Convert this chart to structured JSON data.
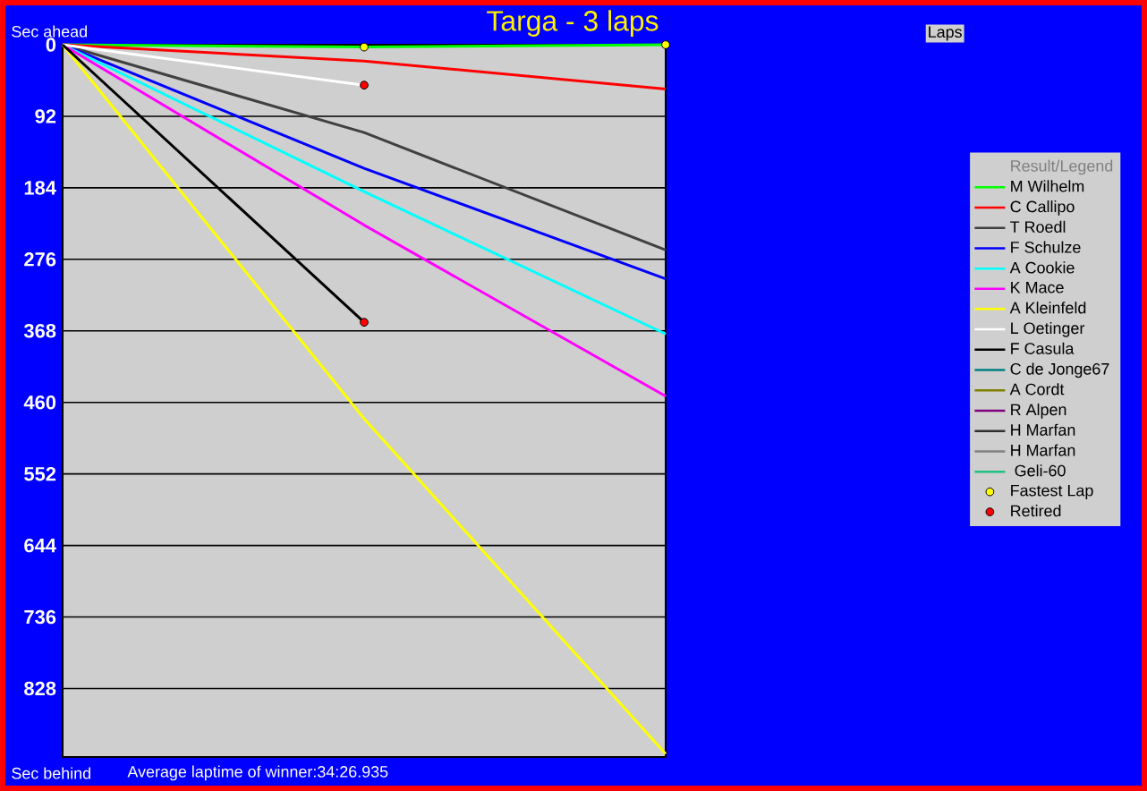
{
  "chart_data": {
    "type": "line",
    "title": "Targa - 3 laps",
    "ylabel": "Sec ahead",
    "legend_title": "Result/Legend",
    "annotations": [
      "Sec behind",
      "Average laptime of winner:34:26.935",
      "Laps"
    ],
    "categories": [
      null,
      null,
      null
    ],
    "ylim": [
      916,
      0
    ],
    "yticks": [
      0,
      92,
      184,
      276,
      368,
      460,
      552,
      644,
      736,
      828
    ],
    "tick_labels": "y",
    "grid": "y",
    "legend": "right",
    "marker": "none",
    "line_style": "solid",
    "series": [
      {
        "name": "M Wilhelm",
        "color": "#00ff00",
        "values": [
          0,
          3,
          0
        ]
      },
      {
        "name": "C Callipo",
        "color": "#ff0000",
        "values": [
          0,
          21,
          57
        ]
      },
      {
        "name": "T Roedl",
        "color": "#404040",
        "values": [
          0,
          113,
          264
        ]
      },
      {
        "name": "F Schulze",
        "color": "#0000ff",
        "values": [
          0,
          159,
          301
        ]
      },
      {
        "name": "A Cookie",
        "color": "#00ffff",
        "values": [
          0,
          189,
          372
        ]
      },
      {
        "name": "K Mace",
        "color": "#ff00ff",
        "values": [
          0,
          232,
          452
        ]
      },
      {
        "name": "A Kleinfeld",
        "color": "#ffff00",
        "values": [
          0,
          481,
          912
        ]
      },
      {
        "name": "L Oetinger",
        "color": "#ffffff",
        "values": [
          0,
          52,
          null
        ]
      },
      {
        "name": "F Casula",
        "color": "#000000",
        "values": [
          0,
          357,
          null
        ]
      },
      {
        "name": "C de Jonge67",
        "color": "#008080",
        "values": [
          null,
          null,
          null
        ]
      },
      {
        "name": "A Cordt",
        "color": "#808000",
        "values": [
          null,
          null,
          null
        ]
      },
      {
        "name": "R Alpen",
        "color": "#800080",
        "values": [
          null,
          null,
          null
        ]
      },
      {
        "name": "H Marfan",
        "color": "#303030",
        "values": [
          null,
          null,
          null
        ]
      },
      {
        "name": "H Marfan",
        "color": "#808080",
        "values": [
          null,
          null,
          null
        ]
      },
      {
        "name": "  Geli-60",
        "color": "#20c080",
        "values": [
          null,
          null,
          null
        ]
      },
      {
        "name": "Fastest Lap",
        "type": "scatter",
        "marker": "circle",
        "color": "#ffff00",
        "values": [
          null,
          3,
          0
        ]
      },
      {
        "name": "Retired",
        "type": "scatter",
        "marker": "circle",
        "color": "#ff0000",
        "values": [
          null,
          52,
          null
        ]
      },
      {
        "type": "scatter",
        "marker": "circle",
        "color": "#ff0000",
        "values": [
          null,
          357,
          null
        ]
      }
    ]
  }
}
